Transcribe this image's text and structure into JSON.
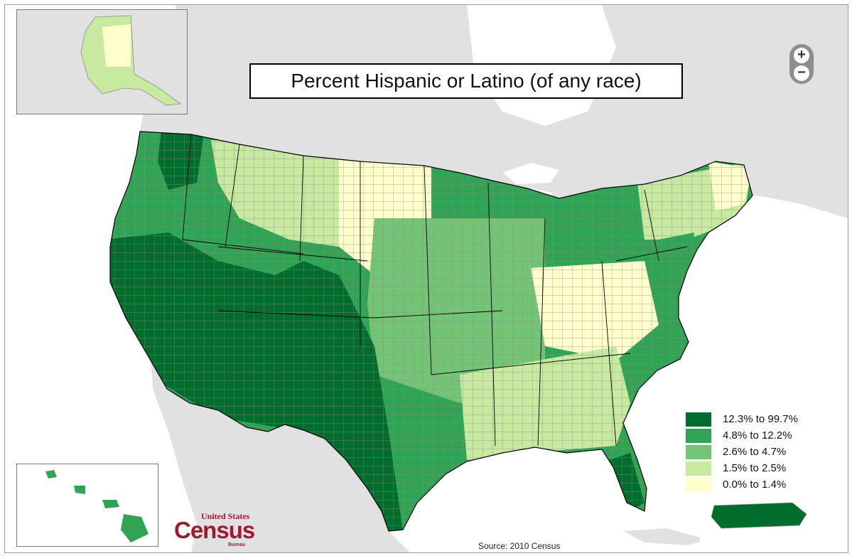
{
  "title": "Percent Hispanic or Latino (of any race)",
  "source": "Source:  2010 Census",
  "logo": {
    "top": "United States",
    "main": "Census",
    "bottom": "Bureau"
  },
  "zoom": {
    "in_symbol": "+",
    "out_symbol": "−"
  },
  "legend": [
    {
      "label": "12.3% to 99.7%",
      "color": "#006d2c"
    },
    {
      "label": "4.8% to 12.2%",
      "color": "#31a354"
    },
    {
      "label": "2.6% to 4.7%",
      "color": "#74c476"
    },
    {
      "label": "1.5% to 2.5%",
      "color": "#c7e9a0"
    },
    {
      "label": "0.0% to 1.4%",
      "color": "#ffffcc"
    }
  ],
  "colors": {
    "water": "#ffffff",
    "foreign_land": "#e1e1e1",
    "county_border": "#9a9a9a",
    "state_border": "#000000"
  }
}
